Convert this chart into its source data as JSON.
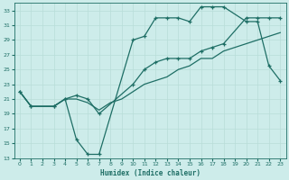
{
  "xlabel": "Humidex (Indice chaleur)",
  "xlim": [
    -0.5,
    23.5
  ],
  "ylim": [
    13,
    34
  ],
  "yticks": [
    13,
    15,
    17,
    19,
    21,
    23,
    25,
    27,
    29,
    31,
    33
  ],
  "xticks": [
    0,
    1,
    2,
    3,
    4,
    5,
    6,
    7,
    8,
    9,
    10,
    11,
    12,
    13,
    14,
    15,
    16,
    17,
    18,
    19,
    20,
    21,
    22,
    23
  ],
  "bg_color": "#cdecea",
  "grid_color": "#b8ddd8",
  "line_color": "#1e6e65",
  "line1_x": [
    0,
    1,
    3,
    4,
    5,
    6,
    7,
    10,
    11,
    12,
    13,
    14,
    15,
    16,
    17,
    18,
    20,
    21,
    22,
    23
  ],
  "line1_y": [
    22,
    20,
    20,
    21,
    15.5,
    13.5,
    13.5,
    29,
    29.5,
    32,
    32,
    32,
    31.5,
    33.5,
    33.5,
    33.5,
    31.5,
    31.5,
    25.5,
    23.5
  ],
  "line2_x": [
    0,
    1,
    3,
    4,
    5,
    6,
    7,
    8,
    9,
    10,
    11,
    12,
    13,
    14,
    15,
    16,
    17,
    18,
    19,
    20,
    21,
    22,
    23
  ],
  "line2_y": [
    22,
    20,
    20,
    21,
    21,
    20.5,
    19.5,
    20.5,
    21,
    22,
    23,
    23.5,
    24,
    25,
    25.5,
    26.5,
    26.5,
    27.5,
    28,
    28.5,
    29,
    29.5,
    30
  ],
  "line3_x": [
    0,
    1,
    3,
    4,
    5,
    6,
    7,
    10,
    11,
    12,
    13,
    14,
    15,
    16,
    17,
    18,
    20,
    21,
    22,
    23
  ],
  "line3_y": [
    22,
    20,
    20,
    21,
    21.5,
    21,
    19,
    23,
    25,
    26,
    26.5,
    26.5,
    26.5,
    27.5,
    28,
    28.5,
    32,
    32,
    32,
    32
  ]
}
